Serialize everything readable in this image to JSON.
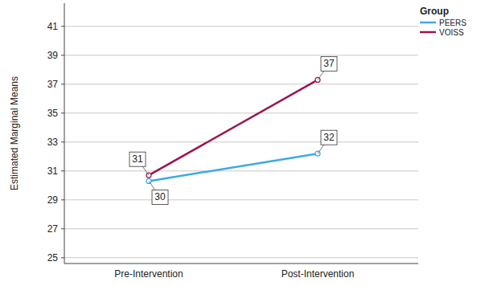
{
  "chart_data": {
    "type": "line",
    "y_label": "Estimated Marginal Means",
    "legend_title": "Group",
    "categories": [
      "Pre-Intervention",
      "Post-Intervention"
    ],
    "series": [
      {
        "name": "PEERS",
        "color": "#3ca9e6",
        "values": [
          30.3,
          32.2
        ],
        "value_labels": [
          "30",
          "32"
        ],
        "marker": "circle"
      },
      {
        "name": "VOISS",
        "color": "#9b1550",
        "values": [
          30.7,
          37.3
        ],
        "value_labels": [
          "31",
          "37"
        ],
        "marker": "circle"
      }
    ],
    "ylim": [
      24.6,
      42.6
    ],
    "yticks": [
      25,
      27,
      29,
      31,
      33,
      35,
      37,
      39,
      41
    ],
    "grid": true,
    "legend": "top-right",
    "data_labels": true
  }
}
